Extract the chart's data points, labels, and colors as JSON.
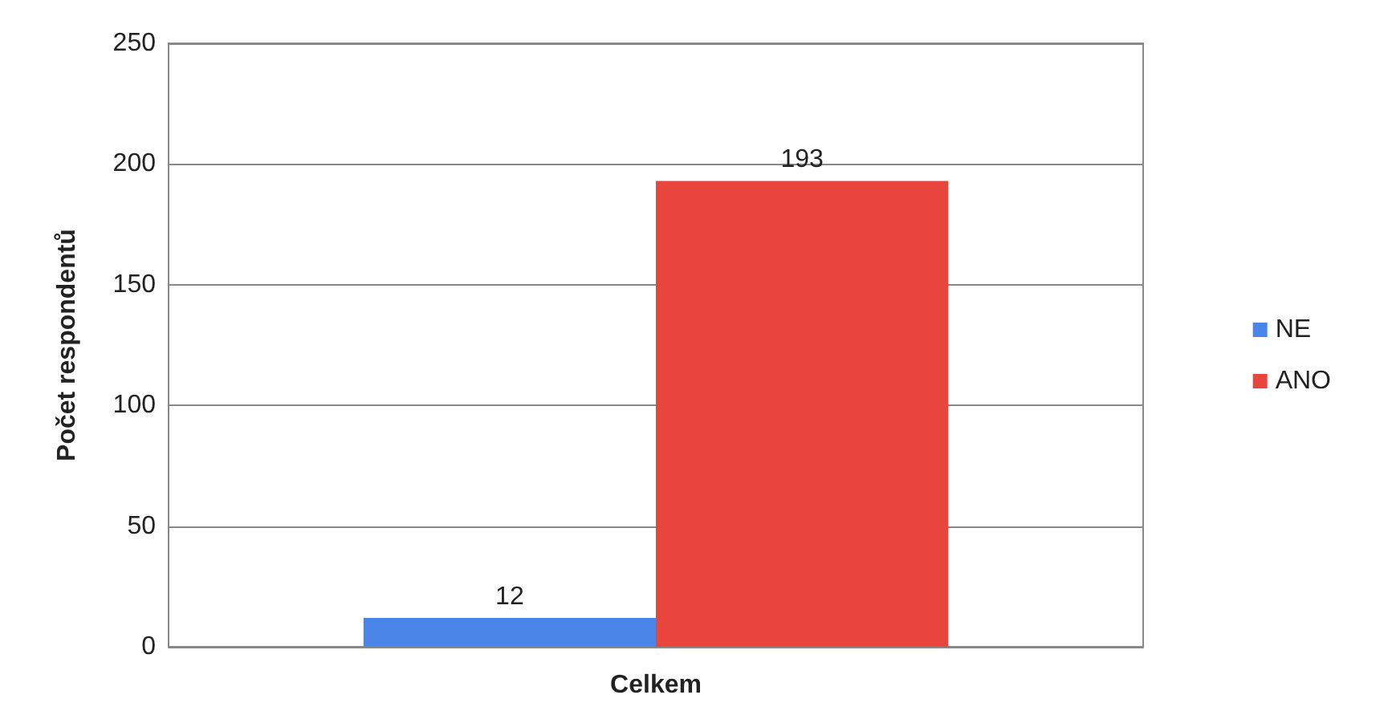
{
  "chart_data": {
    "type": "bar",
    "ylabel": "Počet respondentů",
    "categories": [
      "Celkem"
    ],
    "series": [
      {
        "name": "NE",
        "color": "#4a86e8",
        "values": [
          12
        ]
      },
      {
        "name": "ANO",
        "color": "#e8453c",
        "values": [
          193
        ]
      }
    ],
    "ylim": [
      0,
      250
    ],
    "yticks": [
      0,
      50,
      100,
      150,
      200,
      250
    ],
    "grid": "y",
    "legend": "right",
    "data_labels": true
  }
}
